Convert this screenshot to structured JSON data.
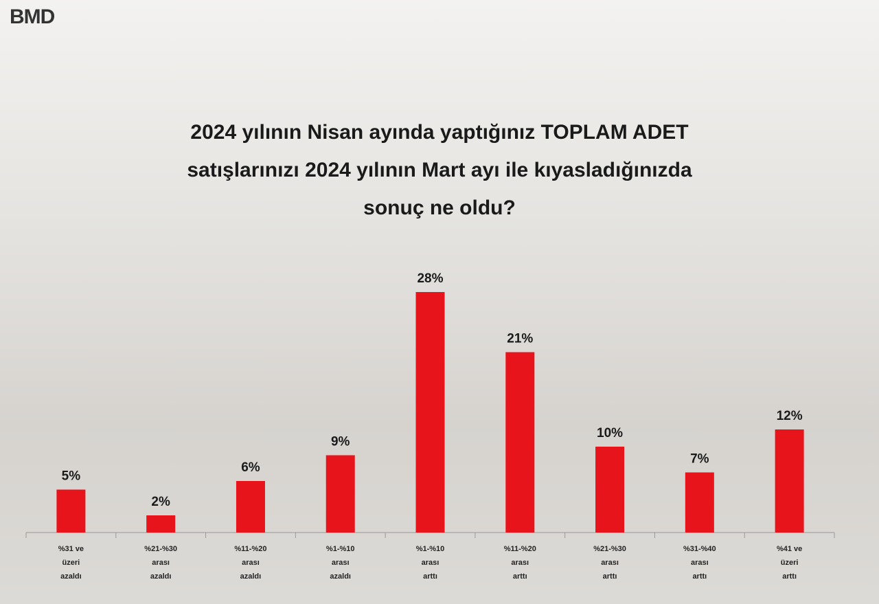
{
  "chart_data": {
    "type": "bar",
    "logo": "BMD",
    "title": "2024 yılının Nisan ayında yaptığınız TOPLAM ADET\nsatışlarınızı 2024 yılının Mart ayı ile kıyasladığınızda\nsonuç ne oldu?",
    "categories": [
      "%31 ve\nüzeri\nazaldı",
      "%21-%30\narası\nazaldı",
      "%11-%20\narası\nazaldı",
      "%1-%10\narası\nazaldı",
      "%1-%10\narası\narttı",
      "%11-%20\narası\narttı",
      "%21-%30\narası\narttı",
      "%31-%40\narası\narttı",
      "%41 ve\nüzeri\narttı"
    ],
    "values": [
      5,
      2,
      6,
      9,
      28,
      21,
      10,
      7,
      12
    ],
    "value_labels": [
      "5%",
      "2%",
      "6%",
      "9%",
      "28%",
      "21%",
      "10%",
      "7%",
      "12%"
    ],
    "color": "#e8141b"
  }
}
